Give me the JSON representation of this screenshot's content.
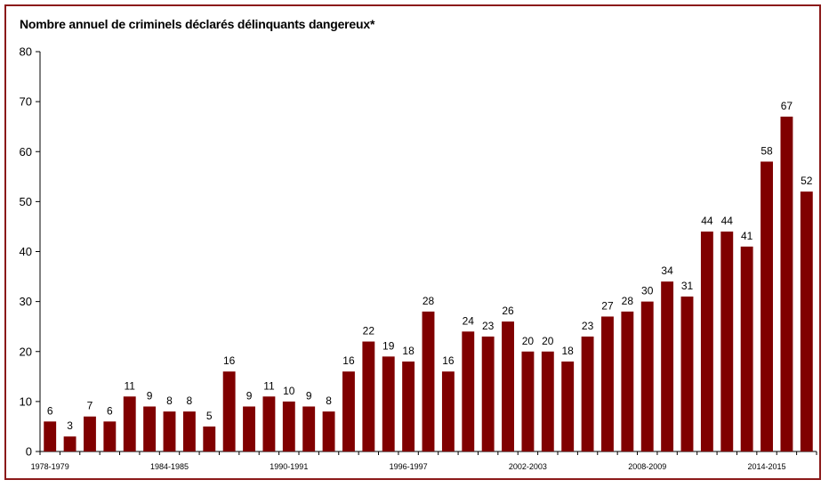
{
  "chart_data": {
    "type": "bar",
    "title": "Nombre annuel de criminels déclarés délinquants dangereux*",
    "xlabel": "",
    "ylabel": "",
    "ylim": [
      0,
      80
    ],
    "yticks": [
      0,
      10,
      20,
      30,
      40,
      50,
      60,
      70,
      80
    ],
    "grid": false,
    "bar_color": "#800000",
    "frame_color": "#8b1a1a",
    "x_tick_labels": [
      {
        "index": 0,
        "label": "1978-1979"
      },
      {
        "index": 6,
        "label": "1984-1985"
      },
      {
        "index": 12,
        "label": "1990-1991"
      },
      {
        "index": 18,
        "label": "1996-1997"
      },
      {
        "index": 24,
        "label": "2002-2003"
      },
      {
        "index": 30,
        "label": "2008-2009"
      },
      {
        "index": 36,
        "label": "2014-2015"
      }
    ],
    "values": [
      6,
      3,
      7,
      6,
      11,
      9,
      8,
      8,
      5,
      16,
      9,
      11,
      10,
      9,
      8,
      16,
      22,
      19,
      18,
      28,
      16,
      24,
      23,
      26,
      20,
      20,
      18,
      23,
      27,
      28,
      30,
      34,
      31,
      44,
      44,
      41,
      58,
      67,
      52
    ]
  }
}
